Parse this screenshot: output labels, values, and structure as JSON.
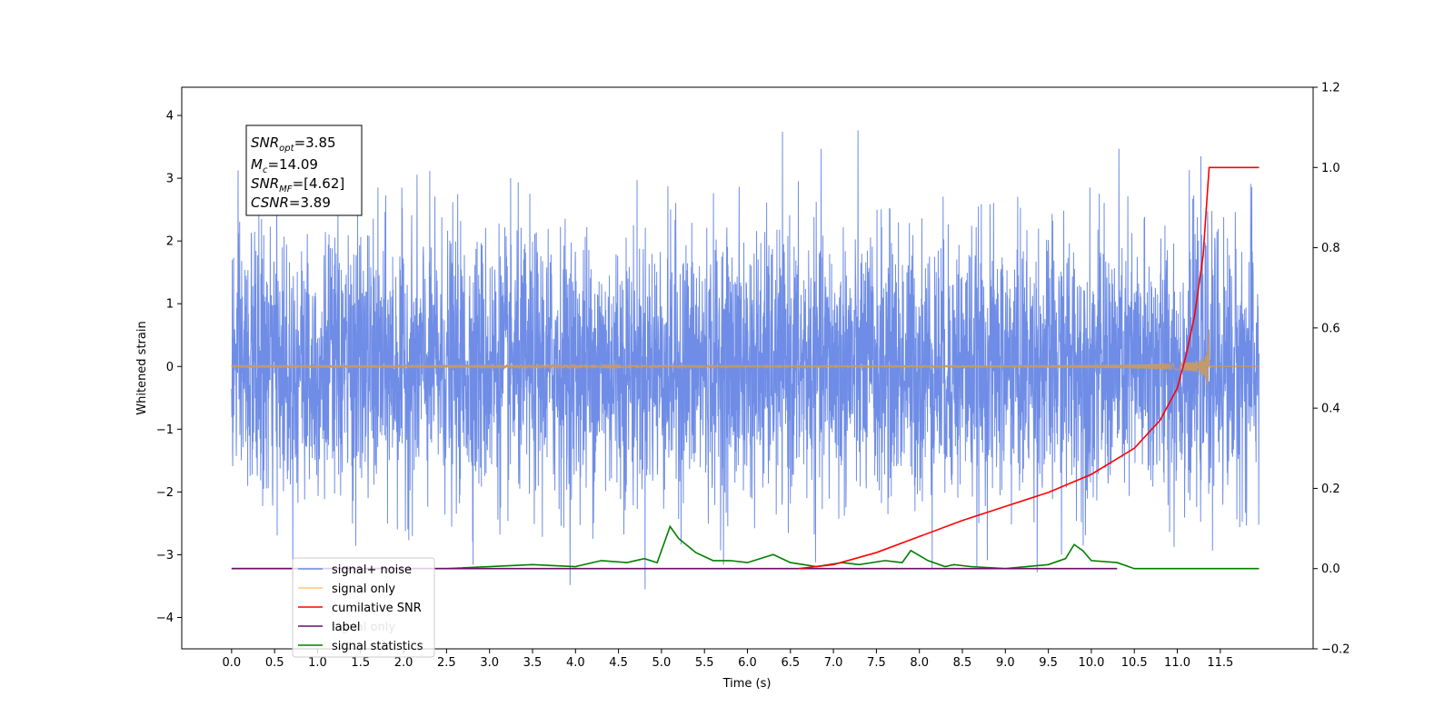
{
  "chart_data": {
    "type": "line",
    "title": "",
    "xlabel": "Time (s)",
    "ylabel": "Whitened strain",
    "y2label": "",
    "xlim": [
      -0.58,
      12.58
    ],
    "ylim": [
      -4.5,
      4.45
    ],
    "y2lim": [
      -0.2,
      1.2
    ],
    "xticks": [
      0.0,
      0.5,
      1.0,
      1.5,
      2.0,
      2.5,
      3.0,
      3.5,
      4.0,
      4.5,
      5.0,
      5.5,
      6.0,
      6.5,
      7.0,
      7.5,
      8.0,
      8.5,
      9.0,
      9.5,
      10.0,
      10.5,
      11.0,
      11.5
    ],
    "xtick_labels": [
      "0.0",
      "0.5",
      "1.0",
      "1.5",
      "2.0",
      "2.5",
      "3.0",
      "3.5",
      "4.0",
      "4.5",
      "5.0",
      "5.5",
      "6.0",
      "6.5",
      "7.0",
      "7.5",
      "8.0",
      "8.5",
      "9.0",
      "9.5",
      "10.0",
      "10.5",
      "11.0",
      "11.5"
    ],
    "yticks": [
      -4,
      -3,
      -2,
      -1,
      0,
      1,
      2,
      3,
      4
    ],
    "ytick_labels": [
      "−4",
      "−3",
      "−2",
      "−1",
      "0",
      "1",
      "2",
      "3",
      "4"
    ],
    "y2ticks": [
      -0.2,
      0.0,
      0.2,
      0.4,
      0.6,
      0.8,
      1.0,
      1.2
    ],
    "y2tick_labels": [
      "−0.2",
      "0.0",
      "0.2",
      "0.4",
      "0.6",
      "0.8",
      "1.0",
      "1.2"
    ],
    "grid": false,
    "legend_position": "lower-left",
    "colors": {
      "noise": "#6f8de6",
      "signal": "#c49a6c",
      "cumsnr": "#ff0000",
      "label": "#6a0d6a",
      "stats": "#008000"
    },
    "series": [
      {
        "name": "signal+ noise",
        "axis": "left",
        "approx_range": [
          -4.1,
          4.05
        ],
        "typical_envelope": [
          -2.6,
          2.6
        ]
      },
      {
        "name": "signal only",
        "axis": "left",
        "chirp_end": 11.37,
        "peak_amplitude": 0.85
      },
      {
        "name": "cumilative SNR",
        "axis": "right",
        "x": [
          6.6,
          7.0,
          7.5,
          8.0,
          8.5,
          9.0,
          9.5,
          10.0,
          10.5,
          10.8,
          11.0,
          11.1,
          11.2,
          11.3,
          11.37,
          11.95
        ],
        "y": [
          0.0,
          0.01,
          0.04,
          0.08,
          0.12,
          0.155,
          0.19,
          0.235,
          0.3,
          0.37,
          0.45,
          0.53,
          0.63,
          0.78,
          1.0,
          1.0
        ]
      },
      {
        "name": "label",
        "axis": "right",
        "x": [
          0.0,
          10.3
        ],
        "y": [
          0.0,
          0.0
        ]
      },
      {
        "name": "signal statistics",
        "axis": "right",
        "x": [
          0.0,
          2.5,
          3.5,
          4.0,
          4.3,
          4.6,
          4.8,
          4.95,
          5.1,
          5.2,
          5.4,
          5.6,
          5.8,
          6.0,
          6.3,
          6.5,
          6.8,
          7.1,
          7.3,
          7.6,
          7.8,
          7.9,
          8.1,
          8.3,
          8.4,
          8.6,
          9.0,
          9.5,
          9.7,
          9.8,
          9.9,
          10.0,
          10.3,
          10.5,
          11.0,
          11.95
        ],
        "y": [
          0.0,
          0.0,
          0.01,
          0.005,
          0.02,
          0.015,
          0.025,
          0.015,
          0.105,
          0.075,
          0.04,
          0.02,
          0.02,
          0.015,
          0.035,
          0.015,
          0.005,
          0.015,
          0.01,
          0.02,
          0.015,
          0.045,
          0.02,
          0.005,
          0.01,
          0.005,
          0.0,
          0.01,
          0.025,
          0.06,
          0.045,
          0.02,
          0.015,
          0.0,
          0.0,
          0.0
        ]
      }
    ],
    "legend_entries": [
      "signal+ noise",
      "signal only",
      "cumilative SNR",
      "label",
      "signal statistics"
    ],
    "annotations": {
      "snr_opt": {
        "name": "SNR",
        "sub": "opt",
        "value": "=3.85"
      },
      "mc": {
        "name": "M",
        "sub": "c",
        "value": "=14.09"
      },
      "snr_mf": {
        "name": "SNR",
        "sub": "MF",
        "value": "=[4.62]"
      },
      "csnr": {
        "name": "CSNR",
        "sub": "",
        "value": "=3.89"
      }
    },
    "hidden_legend_text": "signal only"
  }
}
